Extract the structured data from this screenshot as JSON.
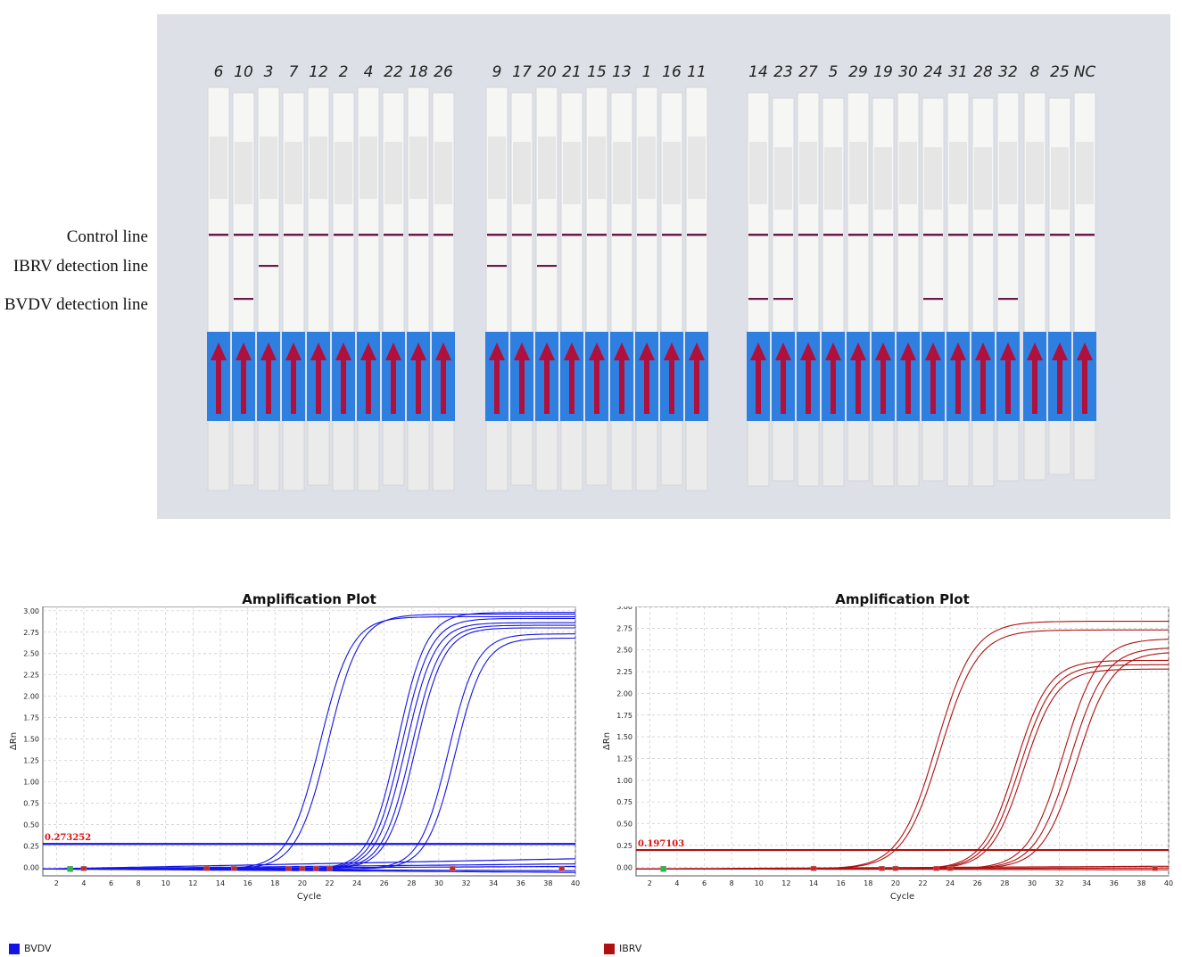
{
  "photo": {
    "labels": {
      "control": "Control line",
      "ibrv": "IBRV detection line",
      "bvdv": "BVDV detection line"
    },
    "groups": [
      {
        "strips": [
          {
            "id": "6",
            "ibrv": false,
            "bvdv": false
          },
          {
            "id": "10",
            "ibrv": false,
            "bvdv": true
          },
          {
            "id": "3",
            "ibrv": true,
            "bvdv": false
          },
          {
            "id": "7",
            "ibrv": false,
            "bvdv": false
          },
          {
            "id": "12",
            "ibrv": false,
            "bvdv": false
          },
          {
            "id": "2",
            "ibrv": false,
            "bvdv": false
          },
          {
            "id": "4",
            "ibrv": false,
            "bvdv": false
          },
          {
            "id": "22",
            "ibrv": false,
            "bvdv": false
          },
          {
            "id": "18",
            "ibrv": false,
            "bvdv": false
          },
          {
            "id": "26",
            "ibrv": false,
            "bvdv": false
          }
        ]
      },
      {
        "strips": [
          {
            "id": "9",
            "ibrv": true,
            "bvdv": false
          },
          {
            "id": "17",
            "ibrv": false,
            "bvdv": false
          },
          {
            "id": "20",
            "ibrv": true,
            "bvdv": false
          },
          {
            "id": "21",
            "ibrv": false,
            "bvdv": false
          },
          {
            "id": "15",
            "ibrv": false,
            "bvdv": false
          },
          {
            "id": "13",
            "ibrv": false,
            "bvdv": false
          },
          {
            "id": "1",
            "ibrv": false,
            "bvdv": false
          },
          {
            "id": "16",
            "ibrv": false,
            "bvdv": false
          },
          {
            "id": "11",
            "ibrv": false,
            "bvdv": false
          }
        ]
      },
      {
        "strips": [
          {
            "id": "14",
            "ibrv": false,
            "bvdv": true
          },
          {
            "id": "23",
            "ibrv": false,
            "bvdv": true
          },
          {
            "id": "27",
            "ibrv": false,
            "bvdv": false
          },
          {
            "id": "5",
            "ibrv": false,
            "bvdv": false
          },
          {
            "id": "29",
            "ibrv": false,
            "bvdv": false
          },
          {
            "id": "19",
            "ibrv": false,
            "bvdv": false
          },
          {
            "id": "30",
            "ibrv": false,
            "bvdv": false
          },
          {
            "id": "24",
            "ibrv": false,
            "bvdv": true
          },
          {
            "id": "31",
            "ibrv": false,
            "bvdv": false
          },
          {
            "id": "28",
            "ibrv": false,
            "bvdv": false
          },
          {
            "id": "32",
            "ibrv": false,
            "bvdv": true
          }
        ]
      },
      {
        "strips": [
          {
            "id": "8",
            "ibrv": false,
            "bvdv": false
          },
          {
            "id": "25",
            "ibrv": false,
            "bvdv": false
          },
          {
            "id": "NC",
            "ibrv": false,
            "bvdv": false
          }
        ]
      }
    ],
    "colors": {
      "background": "#dde0e6",
      "strip": "#f6f6f4",
      "pad": "#2f7fe0",
      "arrow": "#b0103c",
      "line": "#6a1a4a"
    }
  },
  "chart_data": [
    {
      "type": "line",
      "title": "Amplification Plot",
      "xlabel": "Cycle",
      "ylabel": "ΔRn",
      "xlim": [
        1,
        40
      ],
      "ylim": [
        -0.1,
        3.05
      ],
      "xticks": [
        2,
        4,
        6,
        8,
        10,
        12,
        14,
        16,
        18,
        20,
        22,
        24,
        26,
        28,
        30,
        32,
        34,
        36,
        38,
        40
      ],
      "yticks": [
        "0.00",
        "0.25",
        "0.50",
        "0.75",
        "1.00",
        "1.25",
        "1.50",
        "1.75",
        "2.00",
        "2.25",
        "2.50",
        "2.75",
        "3.00"
      ],
      "threshold": {
        "value": 0.273252,
        "label": "0.273252"
      },
      "legend": "BVDV",
      "color": "#1414e6",
      "grid": true,
      "curves": [
        {
          "mid": 21.3,
          "max": 2.95,
          "slope": 1.0
        },
        {
          "mid": 21.9,
          "max": 2.98,
          "slope": 1.0
        },
        {
          "mid": 27.0,
          "max": 3.0,
          "slope": 1.1
        },
        {
          "mid": 27.3,
          "max": 2.93,
          "slope": 1.1
        },
        {
          "mid": 27.6,
          "max": 2.88,
          "slope": 1.1
        },
        {
          "mid": 28.0,
          "max": 2.85,
          "slope": 1.1
        },
        {
          "mid": 28.3,
          "max": 2.82,
          "slope": 1.1
        },
        {
          "mid": 30.7,
          "max": 2.75,
          "slope": 1.1
        },
        {
          "mid": 31.2,
          "max": 2.7,
          "slope": 1.1
        }
      ],
      "flat": [
        0.03,
        0.06,
        0.12,
        -0.02,
        -0.04
      ],
      "markers": {
        "red": [
          4,
          13,
          15,
          19,
          20,
          21,
          22,
          31,
          39
        ],
        "green": [
          3
        ]
      }
    },
    {
      "type": "line",
      "title": "Amplification Plot",
      "xlabel": "Cycle",
      "ylabel": "ΔRn",
      "xlim": [
        1,
        40
      ],
      "ylim": [
        -0.1,
        3.0
      ],
      "xticks": [
        2,
        4,
        6,
        8,
        10,
        12,
        14,
        16,
        18,
        20,
        22,
        24,
        26,
        28,
        30,
        32,
        34,
        36,
        38,
        40
      ],
      "yticks": [
        "0.00",
        "0.25",
        "0.50",
        "0.75",
        "1.00",
        "1.25",
        "1.50",
        "1.75",
        "2.00",
        "2.25",
        "2.50",
        "2.75",
        "3.00"
      ],
      "threshold": {
        "value": 0.197103,
        "label": "0.197103"
      },
      "legend": "IBRV",
      "color": "#b01010",
      "grid": true,
      "curves": [
        {
          "mid": 23.0,
          "max": 2.85,
          "slope": 0.85
        },
        {
          "mid": 23.3,
          "max": 2.75,
          "slope": 0.85
        },
        {
          "mid": 28.8,
          "max": 2.4,
          "slope": 0.95
        },
        {
          "mid": 29.1,
          "max": 2.35,
          "slope": 0.95
        },
        {
          "mid": 29.4,
          "max": 2.3,
          "slope": 0.95
        },
        {
          "mid": 32.3,
          "max": 2.65,
          "slope": 0.9
        },
        {
          "mid": 32.8,
          "max": 2.55,
          "slope": 0.9
        },
        {
          "mid": 33.3,
          "max": 2.5,
          "slope": 0.9
        }
      ],
      "flat": [
        0.01,
        0.03,
        -0.01
      ],
      "markers": {
        "red": [
          14,
          19,
          20,
          23,
          24,
          39
        ],
        "green": [
          3
        ]
      }
    }
  ]
}
